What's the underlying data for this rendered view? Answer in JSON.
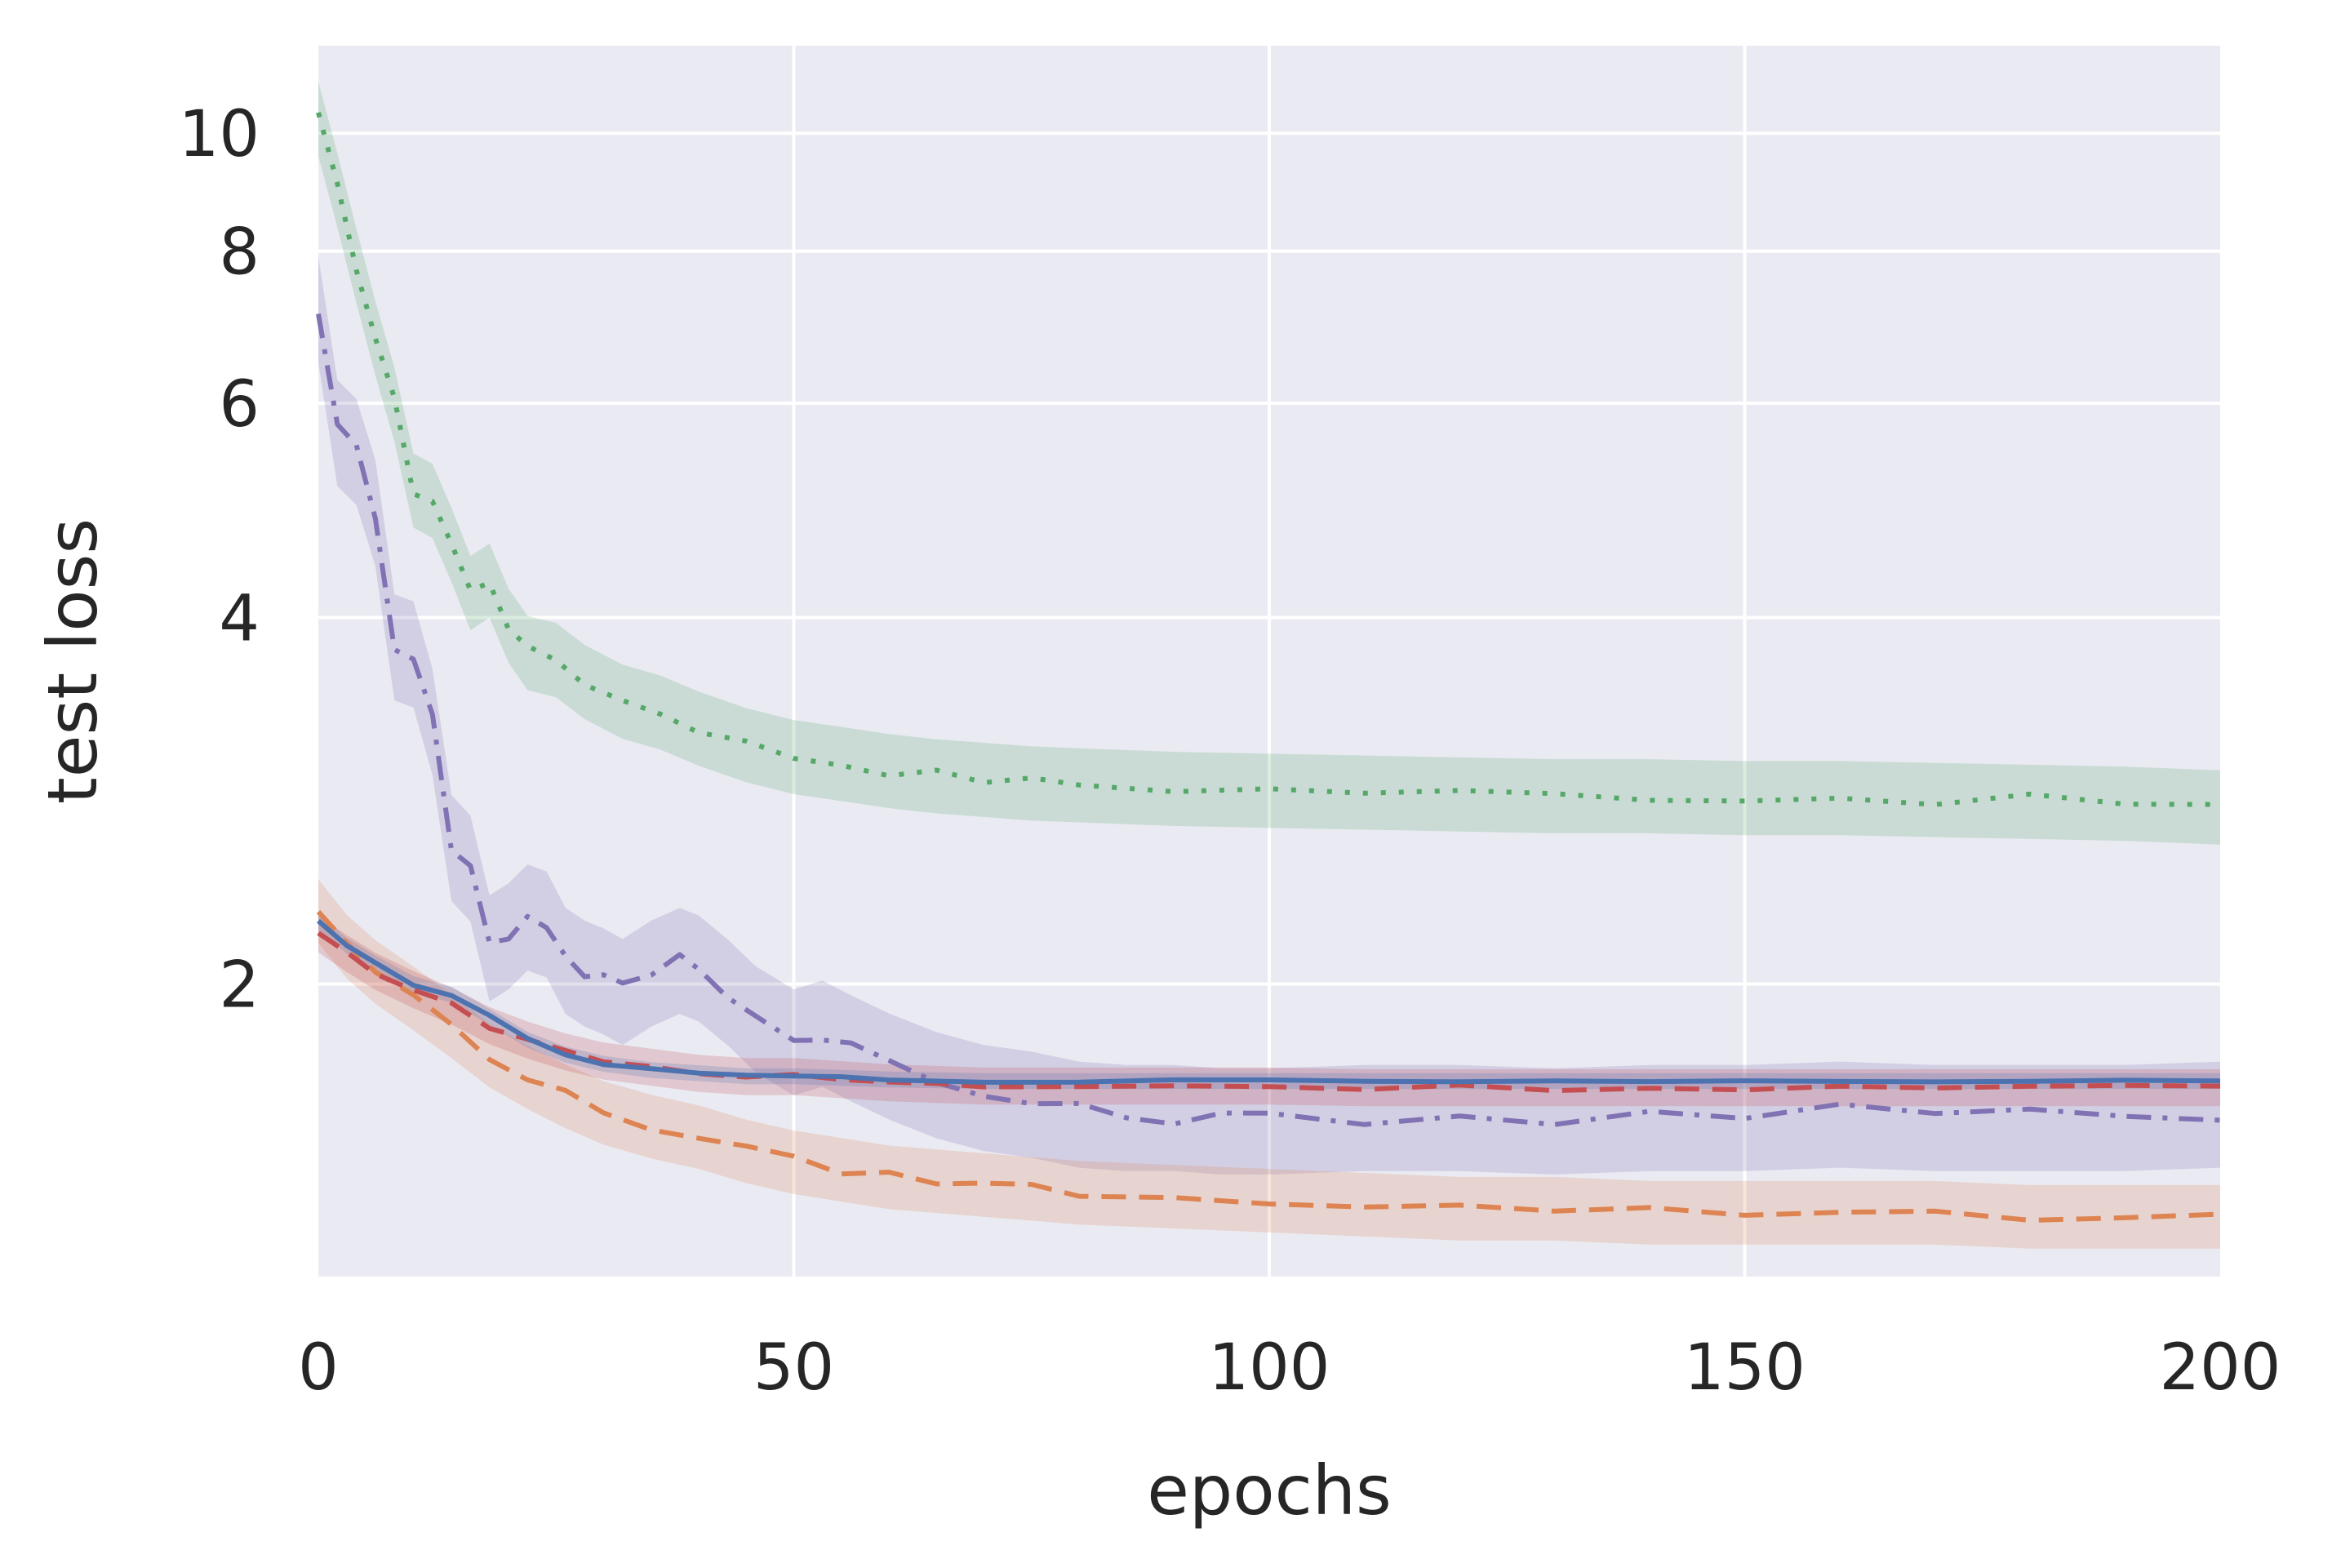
{
  "chart_data": {
    "type": "line",
    "title": "",
    "xlabel": "epochs",
    "ylabel": "test loss",
    "xlim": [
      0,
      200
    ],
    "ylim": [
      1.15,
      11.8
    ],
    "yscale": "log",
    "grid": true,
    "legend": "none",
    "x_ticks": [
      0,
      50,
      100,
      150,
      200
    ],
    "x_tick_labels": [
      "0",
      "50",
      "100",
      "150",
      "200"
    ],
    "y_ticks": [
      2,
      4,
      6,
      8,
      10
    ],
    "y_tick_labels": [
      "2",
      "4",
      "6",
      "8",
      "10"
    ],
    "series": [
      {
        "name": "dotted-green",
        "color": "#55a868",
        "style": "dotted",
        "band": 0.07,
        "points": [
          [
            0,
            10.3
          ],
          [
            2,
            9.0
          ],
          [
            4,
            7.8
          ],
          [
            6,
            6.8
          ],
          [
            8,
            6.0
          ],
          [
            10,
            5.1
          ],
          [
            12,
            5.0
          ],
          [
            14,
            4.6
          ],
          [
            16,
            4.2
          ],
          [
            18,
            4.3
          ],
          [
            20,
            3.95
          ],
          [
            22,
            3.75
          ],
          [
            25,
            3.7
          ],
          [
            28,
            3.55
          ],
          [
            32,
            3.42
          ],
          [
            36,
            3.35
          ],
          [
            40,
            3.25
          ],
          [
            45,
            3.15
          ],
          [
            50,
            3.08
          ],
          [
            55,
            3.04
          ],
          [
            60,
            3.0
          ],
          [
            65,
            2.97
          ],
          [
            70,
            2.95
          ],
          [
            75,
            2.93
          ],
          [
            80,
            2.92
          ],
          [
            90,
            2.9
          ],
          [
            100,
            2.89
          ],
          [
            110,
            2.88
          ],
          [
            120,
            2.87
          ],
          [
            130,
            2.86
          ],
          [
            140,
            2.86
          ],
          [
            150,
            2.85
          ],
          [
            160,
            2.85
          ],
          [
            170,
            2.84
          ],
          [
            180,
            2.83
          ],
          [
            190,
            2.82
          ],
          [
            200,
            2.8
          ]
        ]
      },
      {
        "name": "dashdot-purple",
        "color": "#8172b3",
        "style": "dashdot",
        "band": 0.1,
        "points": [
          [
            0,
            7.2
          ],
          [
            2,
            5.7
          ],
          [
            4,
            5.5
          ],
          [
            6,
            4.9
          ],
          [
            8,
            3.8
          ],
          [
            10,
            3.75
          ],
          [
            12,
            3.3
          ],
          [
            14,
            2.6
          ],
          [
            16,
            2.5
          ],
          [
            18,
            2.15
          ],
          [
            20,
            2.2
          ],
          [
            22,
            2.28
          ],
          [
            24,
            2.25
          ],
          [
            26,
            2.1
          ],
          [
            28,
            2.05
          ],
          [
            30,
            2.02
          ],
          [
            32,
            1.98
          ],
          [
            35,
            2.05
          ],
          [
            38,
            2.1
          ],
          [
            40,
            2.07
          ],
          [
            43,
            1.98
          ],
          [
            46,
            1.88
          ],
          [
            50,
            1.8
          ],
          [
            53,
            1.83
          ],
          [
            56,
            1.78
          ],
          [
            60,
            1.72
          ],
          [
            65,
            1.66
          ],
          [
            70,
            1.62
          ],
          [
            75,
            1.6
          ],
          [
            80,
            1.57
          ],
          [
            85,
            1.56
          ],
          [
            90,
            1.56
          ],
          [
            95,
            1.55
          ],
          [
            100,
            1.55
          ],
          [
            110,
            1.56
          ],
          [
            120,
            1.56
          ],
          [
            130,
            1.55
          ],
          [
            140,
            1.56
          ],
          [
            150,
            1.56
          ],
          [
            160,
            1.57
          ],
          [
            170,
            1.56
          ],
          [
            180,
            1.56
          ],
          [
            190,
            1.56
          ],
          [
            200,
            1.57
          ]
        ]
      },
      {
        "name": "dashed-orange",
        "color": "#dd8452",
        "style": "dashed",
        "band": 0.06,
        "points": [
          [
            0,
            2.3
          ],
          [
            3,
            2.15
          ],
          [
            6,
            2.05
          ],
          [
            10,
            1.95
          ],
          [
            14,
            1.85
          ],
          [
            18,
            1.75
          ],
          [
            22,
            1.68
          ],
          [
            26,
            1.62
          ],
          [
            30,
            1.57
          ],
          [
            35,
            1.53
          ],
          [
            40,
            1.5
          ],
          [
            45,
            1.46
          ],
          [
            50,
            1.43
          ],
          [
            55,
            1.41
          ],
          [
            60,
            1.39
          ],
          [
            65,
            1.38
          ],
          [
            70,
            1.37
          ],
          [
            75,
            1.36
          ],
          [
            80,
            1.35
          ],
          [
            90,
            1.34
          ],
          [
            100,
            1.33
          ],
          [
            110,
            1.32
          ],
          [
            120,
            1.31
          ],
          [
            130,
            1.31
          ],
          [
            140,
            1.3
          ],
          [
            150,
            1.3
          ],
          [
            160,
            1.3
          ],
          [
            170,
            1.3
          ],
          [
            180,
            1.29
          ],
          [
            190,
            1.29
          ],
          [
            200,
            1.29
          ]
        ]
      },
      {
        "name": "dashed-red",
        "color": "#c44e52",
        "style": "dashed",
        "band": 0.035,
        "points": [
          [
            0,
            2.2
          ],
          [
            3,
            2.12
          ],
          [
            6,
            2.05
          ],
          [
            10,
            1.98
          ],
          [
            14,
            1.92
          ],
          [
            18,
            1.85
          ],
          [
            22,
            1.8
          ],
          [
            26,
            1.76
          ],
          [
            30,
            1.73
          ],
          [
            35,
            1.71
          ],
          [
            40,
            1.69
          ],
          [
            45,
            1.68
          ],
          [
            50,
            1.68
          ],
          [
            55,
            1.67
          ],
          [
            60,
            1.66
          ],
          [
            65,
            1.655
          ],
          [
            70,
            1.65
          ],
          [
            80,
            1.65
          ],
          [
            90,
            1.65
          ],
          [
            100,
            1.65
          ],
          [
            110,
            1.645
          ],
          [
            120,
            1.645
          ],
          [
            130,
            1.645
          ],
          [
            140,
            1.645
          ],
          [
            150,
            1.645
          ],
          [
            160,
            1.645
          ],
          [
            170,
            1.645
          ],
          [
            180,
            1.645
          ],
          [
            190,
            1.645
          ],
          [
            200,
            1.645
          ]
        ]
      },
      {
        "name": "solid-blue",
        "color": "#4c72b0",
        "style": "solid",
        "band": 0.015,
        "points": [
          [
            0,
            2.25
          ],
          [
            3,
            2.15
          ],
          [
            6,
            2.08
          ],
          [
            10,
            2.0
          ],
          [
            14,
            1.96
          ],
          [
            18,
            1.88
          ],
          [
            22,
            1.8
          ],
          [
            26,
            1.75
          ],
          [
            30,
            1.72
          ],
          [
            35,
            1.7
          ],
          [
            40,
            1.69
          ],
          [
            45,
            1.68
          ],
          [
            50,
            1.68
          ],
          [
            55,
            1.675
          ],
          [
            60,
            1.67
          ],
          [
            70,
            1.665
          ],
          [
            80,
            1.665
          ],
          [
            90,
            1.665
          ],
          [
            100,
            1.665
          ],
          [
            110,
            1.665
          ],
          [
            120,
            1.665
          ],
          [
            130,
            1.665
          ],
          [
            140,
            1.665
          ],
          [
            150,
            1.665
          ],
          [
            160,
            1.665
          ],
          [
            170,
            1.665
          ],
          [
            180,
            1.665
          ],
          [
            190,
            1.665
          ],
          [
            200,
            1.665
          ]
        ]
      }
    ]
  }
}
